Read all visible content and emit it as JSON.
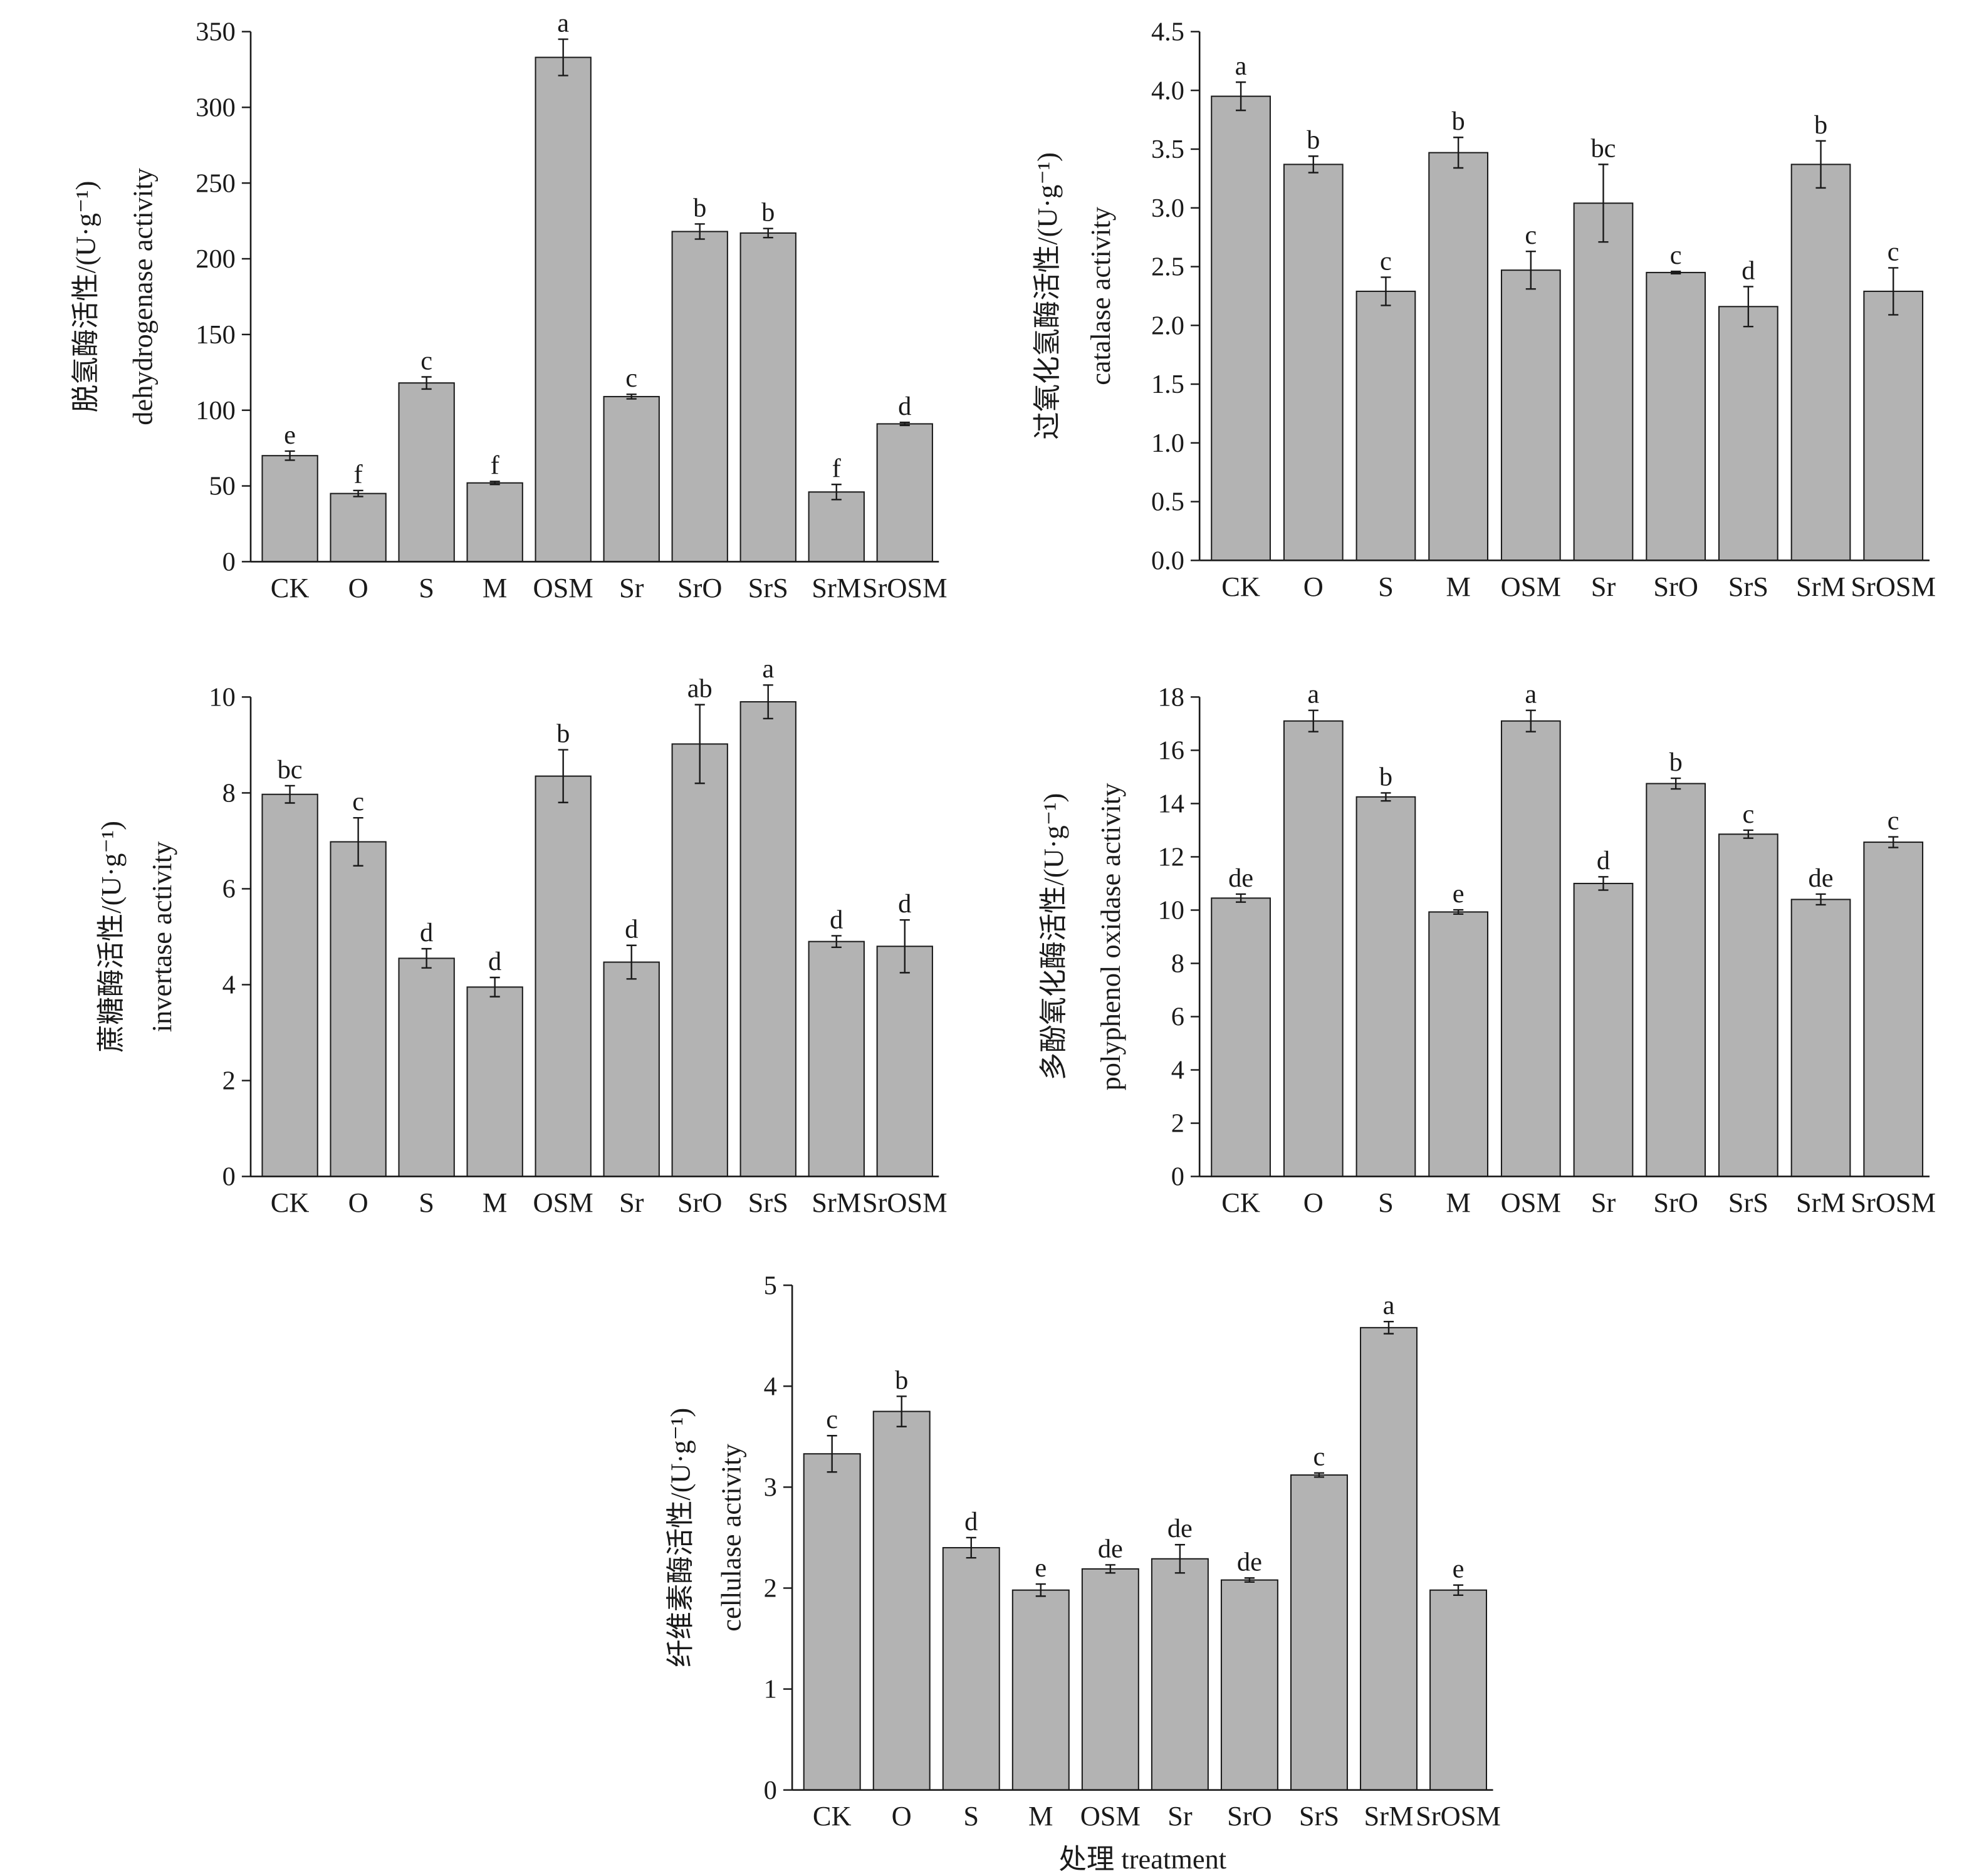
{
  "chart_data": [
    {
      "type": "bar",
      "title": "",
      "ylabel_zh": "脱氢酶活性/(U·g⁻¹)",
      "ylabel_en": "dehydrogenase activity",
      "xlabel": "",
      "categories": [
        "CK",
        "O",
        "S",
        "M",
        "OSM",
        "Sr",
        "SrO",
        "SrS",
        "SrM",
        "SrOSM"
      ],
      "values": [
        70,
        45,
        118,
        52,
        333,
        109,
        218,
        217,
        46,
        91
      ],
      "errors": [
        3,
        2,
        4,
        1,
        12,
        1.5,
        5,
        3,
        5,
        1
      ],
      "letters": [
        "e",
        "f",
        "c",
        "f",
        "a",
        "c",
        "b",
        "b",
        "f",
        "d"
      ],
      "ylim": [
        0,
        350
      ],
      "ystep": 50,
      "ydecimals": 0
    },
    {
      "type": "bar",
      "title": "",
      "ylabel_zh": "过氧化氢酶活性/(U·g⁻¹)",
      "ylabel_en": "catalase activity",
      "xlabel": "",
      "categories": [
        "CK",
        "O",
        "S",
        "M",
        "OSM",
        "Sr",
        "SrO",
        "SrS",
        "SrM",
        "SrOSM"
      ],
      "values": [
        3.95,
        3.37,
        2.29,
        3.47,
        2.47,
        3.04,
        2.45,
        2.16,
        3.37,
        2.29
      ],
      "errors": [
        0.12,
        0.07,
        0.12,
        0.13,
        0.16,
        0.33,
        0.01,
        0.17,
        0.2,
        0.2
      ],
      "letters": [
        "a",
        "b",
        "c",
        "b",
        "c",
        "bc",
        "c",
        "d",
        "b",
        "c"
      ],
      "ylim": [
        0,
        4.5
      ],
      "ystep": 0.5,
      "ydecimals": 1
    },
    {
      "type": "bar",
      "title": "",
      "ylabel_zh": "蔗糖酶活性/(U·g⁻¹)",
      "ylabel_en": "invertase activity",
      "xlabel": "",
      "categories": [
        "CK",
        "O",
        "S",
        "M",
        "OSM",
        "Sr",
        "SrO",
        "SrS",
        "SrM",
        "SrOSM"
      ],
      "values": [
        7.97,
        6.98,
        4.55,
        3.95,
        8.35,
        4.47,
        9.02,
        9.9,
        4.9,
        4.8
      ],
      "errors": [
        0.18,
        0.5,
        0.2,
        0.2,
        0.55,
        0.35,
        0.82,
        0.35,
        0.12,
        0.55
      ],
      "letters": [
        "bc",
        "c",
        "d",
        "d",
        "b",
        "d",
        "ab",
        "a",
        "d",
        "d"
      ],
      "ylim": [
        0,
        10
      ],
      "ystep": 2,
      "ydecimals": 0
    },
    {
      "type": "bar",
      "title": "",
      "ylabel_zh": "多酚氧化酶活性/(U·g⁻¹)",
      "ylabel_en": "polyphenol oxidase activity",
      "xlabel": "",
      "categories": [
        "CK",
        "O",
        "S",
        "M",
        "OSM",
        "Sr",
        "SrO",
        "SrS",
        "SrM",
        "SrOSM"
      ],
      "values": [
        10.45,
        17.1,
        14.25,
        9.93,
        17.1,
        11.0,
        14.75,
        12.85,
        10.4,
        12.55
      ],
      "errors": [
        0.15,
        0.4,
        0.15,
        0.08,
        0.4,
        0.25,
        0.2,
        0.15,
        0.2,
        0.2
      ],
      "letters": [
        "de",
        "a",
        "b",
        "e",
        "a",
        "d",
        "b",
        "c",
        "de",
        "c"
      ],
      "ylim": [
        0,
        18
      ],
      "ystep": 2,
      "ydecimals": 0
    },
    {
      "type": "bar",
      "title": "",
      "ylabel_zh": "纤维素酶活性/(U·g⁻¹)",
      "ylabel_en": "cellulase activity",
      "xlabel": "处理 treatment",
      "categories": [
        "CK",
        "O",
        "S",
        "M",
        "OSM",
        "Sr",
        "SrO",
        "SrS",
        "SrM",
        "SrOSM"
      ],
      "values": [
        3.33,
        3.75,
        2.4,
        1.98,
        2.19,
        2.29,
        2.08,
        3.12,
        4.58,
        1.98
      ],
      "errors": [
        0.18,
        0.15,
        0.1,
        0.06,
        0.04,
        0.14,
        0.02,
        0.02,
        0.06,
        0.05
      ],
      "letters": [
        "c",
        "b",
        "d",
        "e",
        "de",
        "de",
        "de",
        "c",
        "a",
        "e"
      ],
      "ylim": [
        0,
        5
      ],
      "ystep": 1,
      "ydecimals": 0
    }
  ],
  "colors": {
    "bar": "#b3b3b3",
    "axis": "#1a1a1a"
  }
}
